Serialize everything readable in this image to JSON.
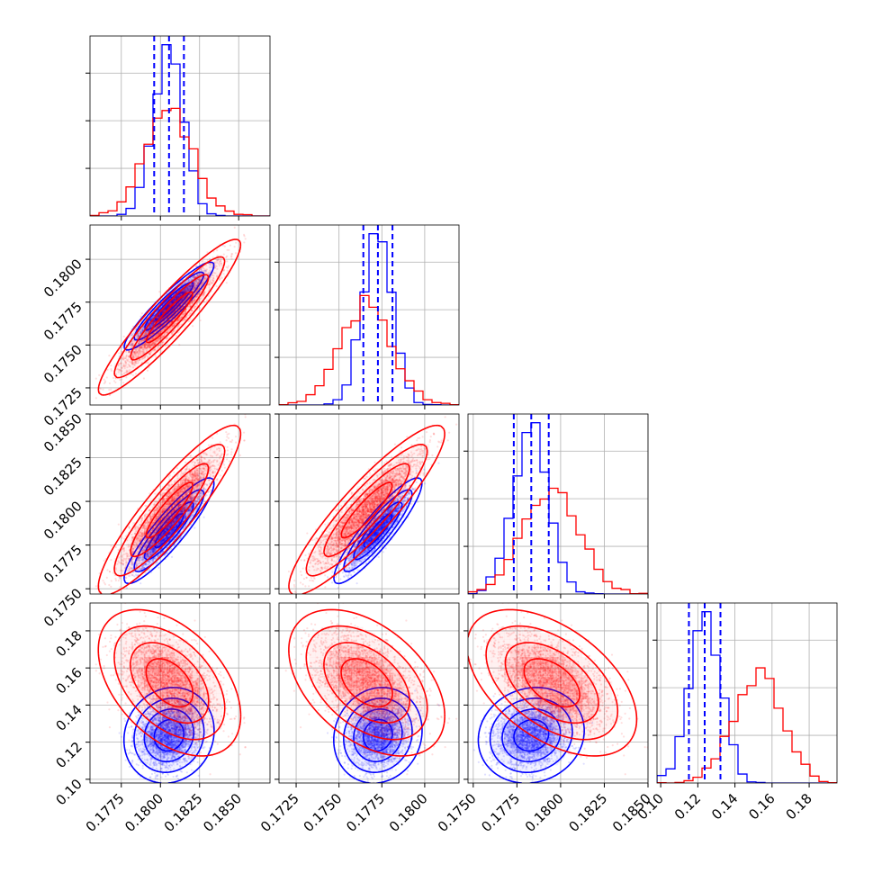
{
  "chart_data": {
    "type": "corner",
    "title": "",
    "parameters": [
      "",
      "",
      "",
      ""
    ],
    "colors": {
      "blue": "#0000ff",
      "red": "#ff0000"
    },
    "grid": true,
    "ranges": [
      [
        0.1755,
        0.187
      ],
      [
        0.1715,
        0.182
      ],
      [
        0.1747,
        0.185
      ],
      [
        0.098,
        0.195
      ]
    ],
    "ticks": [
      {
        "values": [
          0.1775,
          0.18,
          0.1825,
          0.185
        ],
        "labels": [
          "0.1775",
          "0.1800",
          "0.1825",
          "0.1850"
        ]
      },
      {
        "values": [
          0.1725,
          0.175,
          0.1775,
          0.18
        ],
        "labels": [
          "0.1725",
          "0.1750",
          "0.1775",
          "0.1800"
        ]
      },
      {
        "values": [
          0.175,
          0.1775,
          0.18,
          0.1825,
          0.185
        ],
        "labels": [
          "0.1750",
          "0.1775",
          "0.1800",
          "0.1825",
          "0.1850"
        ]
      },
      {
        "values": [
          0.1,
          0.12,
          0.14,
          0.16,
          0.18
        ],
        "labels": [
          "0.10",
          "0.12",
          "0.14",
          "0.16",
          "0.18"
        ]
      }
    ],
    "series": [
      {
        "color": "#0000ff",
        "mean": [
          0.18055,
          0.17727,
          0.17832,
          0.1237
        ],
        "sd": [
          0.00095,
          0.00085,
          0.001,
          0.0085
        ],
        "quantiles": [
          [
            0.1796,
            0.18055,
            0.1815
          ],
          [
            0.17642,
            0.17727,
            0.17812
          ],
          [
            0.17732,
            0.17832,
            0.17932
          ],
          [
            0.1152,
            0.1237,
            0.1322
          ]
        ],
        "correlations": [
          [
            1,
            0.93,
            0.9,
            0.1
          ],
          [
            0.93,
            1,
            0.9,
            0.1
          ],
          [
            0.9,
            0.9,
            1,
            0.1
          ],
          [
            0.1,
            0.1,
            0.1,
            1
          ]
        ]
      },
      {
        "color": "#ff0000",
        "mean": [
          0.18058,
          0.17662,
          0.1795,
          0.152
        ],
        "sd": [
          0.0015,
          0.0015,
          0.0016,
          0.013
        ],
        "quantiles": [],
        "correlations": [
          [
            1,
            0.93,
            0.9,
            -0.45
          ],
          [
            0.93,
            1,
            0.9,
            -0.45
          ],
          [
            0.9,
            0.9,
            1,
            -0.5
          ],
          [
            -0.45,
            -0.45,
            -0.5,
            1
          ]
        ]
      }
    ]
  }
}
